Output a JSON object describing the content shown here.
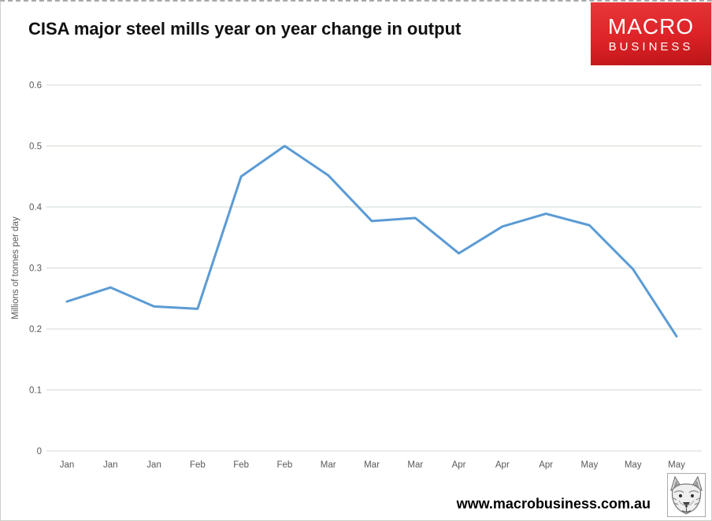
{
  "header": {
    "title": "CISA major steel mills year on year change in output",
    "logo": {
      "line1": "MACRO",
      "line2": "BUSINESS",
      "bg_color": "#dd2327",
      "text_color": "#ffffff"
    }
  },
  "footer": {
    "url": "www.macrobusiness.com.au",
    "wolf_icon": "wolf-head-sketch"
  },
  "chart_data": {
    "type": "line",
    "title": "CISA major steel mills year on year change in output",
    "categories": [
      "Jan",
      "Jan",
      "Jan",
      "Feb",
      "Feb",
      "Feb",
      "Mar",
      "Mar",
      "Mar",
      "Apr",
      "Apr",
      "Apr",
      "May",
      "May",
      "May"
    ],
    "values": [
      0.245,
      0.268,
      0.237,
      0.233,
      0.45,
      0.5,
      0.452,
      0.377,
      0.382,
      0.324,
      0.368,
      0.389,
      0.37,
      0.298,
      0.188
    ],
    "xlabel": "",
    "ylabel": "Millions of tonnes per day",
    "ylim": [
      0,
      0.6
    ],
    "yticks": [
      0,
      0.1,
      0.2,
      0.3,
      0.4,
      0.5,
      0.6
    ],
    "grid": true,
    "legend": false,
    "line_color": "#5b9bd5",
    "gridline_color": "#d2d9cf",
    "tick_label_color": "#595959",
    "axis_title_color": "#595959"
  }
}
